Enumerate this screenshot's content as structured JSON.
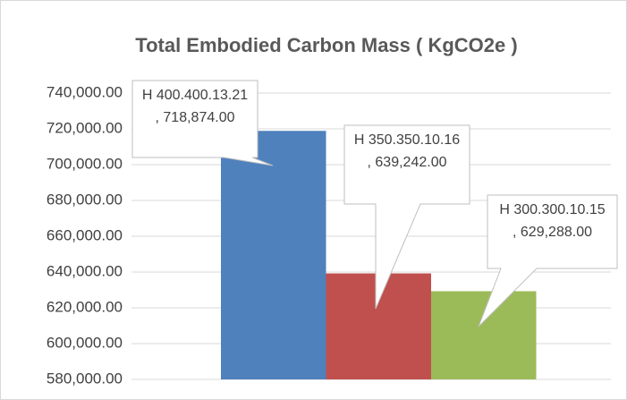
{
  "chart_data": {
    "type": "bar",
    "title": "Total Embodied Carbon Mass ( KgCO2e )",
    "categories": [
      null
    ],
    "series": [
      {
        "name": "H 400.400.13.21",
        "color": "#4f81bd",
        "values": [
          718874
        ],
        "value_labels": [
          ", 718,874.00"
        ]
      },
      {
        "name": "H 350.350.10.16",
        "color": "#c0504d",
        "values": [
          639242
        ],
        "value_labels": [
          ", 639,242.00"
        ]
      },
      {
        "name": "H 300.300.10.15",
        "color": "#9bbb59",
        "values": [
          629288
        ],
        "value_labels": [
          ", 629,288.00"
        ]
      }
    ],
    "ylim": [
      580000,
      740000
    ],
    "yticks": [
      {
        "value": 580000,
        "label": "580,000.00"
      },
      {
        "value": 600000,
        "label": "600,000.00"
      },
      {
        "value": 620000,
        "label": "620,000.00"
      },
      {
        "value": 640000,
        "label": "640,000.00"
      },
      {
        "value": 660000,
        "label": "660,000.00"
      },
      {
        "value": 680000,
        "label": "680,000.00"
      },
      {
        "value": 700000,
        "label": "700,000.00"
      },
      {
        "value": 720000,
        "label": "720,000.00"
      },
      {
        "value": 740000,
        "label": "740,000.00"
      }
    ],
    "grid": true
  }
}
